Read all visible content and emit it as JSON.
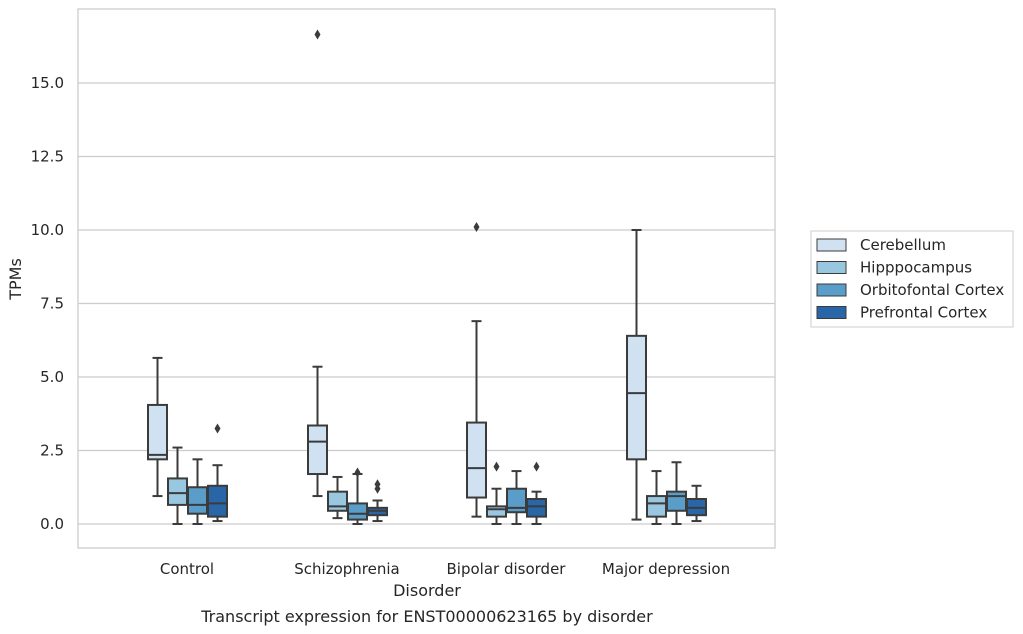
{
  "chart_data": {
    "type": "box",
    "caption": "Transcript expression for ENST00000623165 by disorder",
    "xlabel": "Disorder",
    "ylabel": "TPMs",
    "ylim": [
      -0.8,
      17.8
    ],
    "yticks": [
      "0.0",
      "2.5",
      "5.0",
      "7.5",
      "10.0",
      "12.5",
      "15.0"
    ],
    "categories": [
      "Control",
      "Schizophrenia",
      "Bipolar disorder",
      "Major depression"
    ],
    "grid": "horizontal",
    "legend_position": "right",
    "series": [
      {
        "name": "Cerebellum",
        "color": "#d0e1f2",
        "boxes": [
          {
            "whisker_low": 0.95,
            "q1": 2.2,
            "median": 2.35,
            "q3": 4.05,
            "whisker_high": 5.65,
            "outliers": []
          },
          {
            "whisker_low": 0.95,
            "q1": 1.7,
            "median": 2.8,
            "q3": 3.35,
            "whisker_high": 5.35,
            "outliers": [
              16.65
            ]
          },
          {
            "whisker_low": 0.25,
            "q1": 0.9,
            "median": 1.9,
            "q3": 3.45,
            "whisker_high": 6.9,
            "outliers": [
              10.1
            ]
          },
          {
            "whisker_low": 0.15,
            "q1": 2.2,
            "median": 4.45,
            "q3": 6.4,
            "whisker_high": 10.0,
            "outliers": []
          }
        ]
      },
      {
        "name": "Hipppocampus",
        "color": "#9ac7e0",
        "boxes": [
          {
            "whisker_low": 0.0,
            "q1": 0.65,
            "median": 1.05,
            "q3": 1.55,
            "whisker_high": 2.6,
            "outliers": []
          },
          {
            "whisker_low": 0.2,
            "q1": 0.45,
            "median": 0.6,
            "q3": 1.1,
            "whisker_high": 1.6,
            "outliers": []
          },
          {
            "whisker_low": 0.0,
            "q1": 0.25,
            "median": 0.5,
            "q3": 0.6,
            "whisker_high": 1.2,
            "outliers": [
              1.95
            ]
          },
          {
            "whisker_low": 0.0,
            "q1": 0.25,
            "median": 0.7,
            "q3": 0.95,
            "whisker_high": 1.8,
            "outliers": []
          }
        ]
      },
      {
        "name": "Orbitofontal Cortex",
        "color": "#5a9dc8",
        "boxes": [
          {
            "whisker_low": 0.0,
            "q1": 0.35,
            "median": 0.65,
            "q3": 1.25,
            "whisker_high": 2.2,
            "outliers": []
          },
          {
            "whisker_low": 0.0,
            "q1": 0.15,
            "median": 0.35,
            "q3": 0.7,
            "whisker_high": 1.7,
            "outliers": [
              1.75
            ]
          },
          {
            "whisker_low": 0.0,
            "q1": 0.4,
            "median": 0.55,
            "q3": 1.2,
            "whisker_high": 1.8,
            "outliers": []
          },
          {
            "whisker_low": 0.0,
            "q1": 0.45,
            "median": 0.95,
            "q3": 1.1,
            "whisker_high": 2.1,
            "outliers": []
          }
        ]
      },
      {
        "name": "Prefrontal Cortex",
        "color": "#2966a8",
        "boxes": [
          {
            "whisker_low": 0.1,
            "q1": 0.25,
            "median": 0.7,
            "q3": 1.3,
            "whisker_high": 2.0,
            "outliers": [
              3.25
            ]
          },
          {
            "whisker_low": 0.1,
            "q1": 0.3,
            "median": 0.45,
            "q3": 0.55,
            "whisker_high": 0.8,
            "outliers": [
              1.2,
              1.35
            ]
          },
          {
            "whisker_low": 0.0,
            "q1": 0.25,
            "median": 0.6,
            "q3": 0.85,
            "whisker_high": 1.1,
            "outliers": [
              1.95
            ]
          },
          {
            "whisker_low": 0.1,
            "q1": 0.3,
            "median": 0.55,
            "q3": 0.85,
            "whisker_high": 1.3,
            "outliers": []
          }
        ]
      }
    ]
  }
}
